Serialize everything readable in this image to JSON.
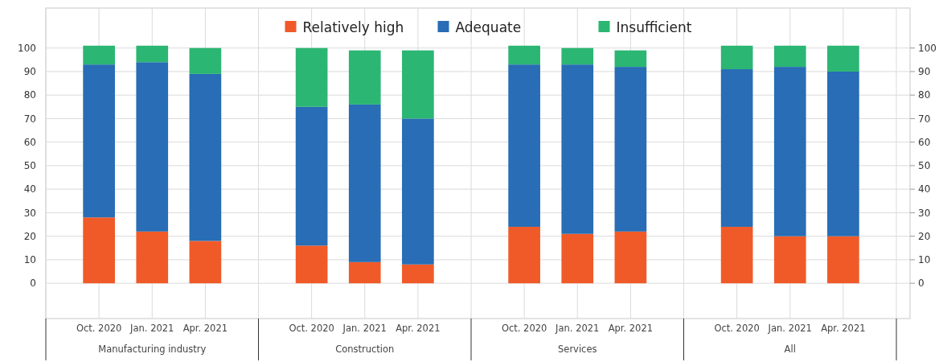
{
  "chart_data": {
    "type": "bar",
    "stacked": true,
    "categories": [
      "Oct. 2020",
      "Jan. 2021",
      "Apr. 2021",
      "Oct. 2020",
      "Jan. 2021",
      "Apr. 2021",
      "Oct. 2020",
      "Jan. 2021",
      "Apr. 2021",
      "Oct. 2020",
      "Jan. 2021",
      "Apr. 2021"
    ],
    "series": [
      {
        "name": "Relatively high",
        "color": "#f05a28",
        "values": [
          28,
          22,
          18,
          16,
          9,
          8,
          24,
          21,
          22,
          24,
          20,
          20
        ]
      },
      {
        "name": "Adequate",
        "color": "#286db5",
        "values": [
          65,
          72,
          71,
          59,
          67,
          62,
          69,
          72,
          70,
          67,
          72,
          70
        ]
      },
      {
        "name": "Insufficient",
        "color": "#2bb673",
        "values": [
          8,
          7,
          11,
          25,
          23,
          29,
          8,
          7,
          7,
          10,
          9,
          11
        ]
      }
    ],
    "annotations": [
      "Manufacturing industry",
      "Construction",
      "Services",
      "All"
    ],
    "ylim": [
      -15,
      117
    ],
    "yticks": [
      0,
      10,
      20,
      30,
      40,
      50,
      60,
      70,
      80,
      90,
      100
    ],
    "y2lim": [
      -15,
      117
    ],
    "y2ticks": [
      0,
      10,
      20,
      30,
      40,
      50,
      60,
      70,
      80,
      90,
      100
    ],
    "grid": true,
    "legend": "top"
  }
}
